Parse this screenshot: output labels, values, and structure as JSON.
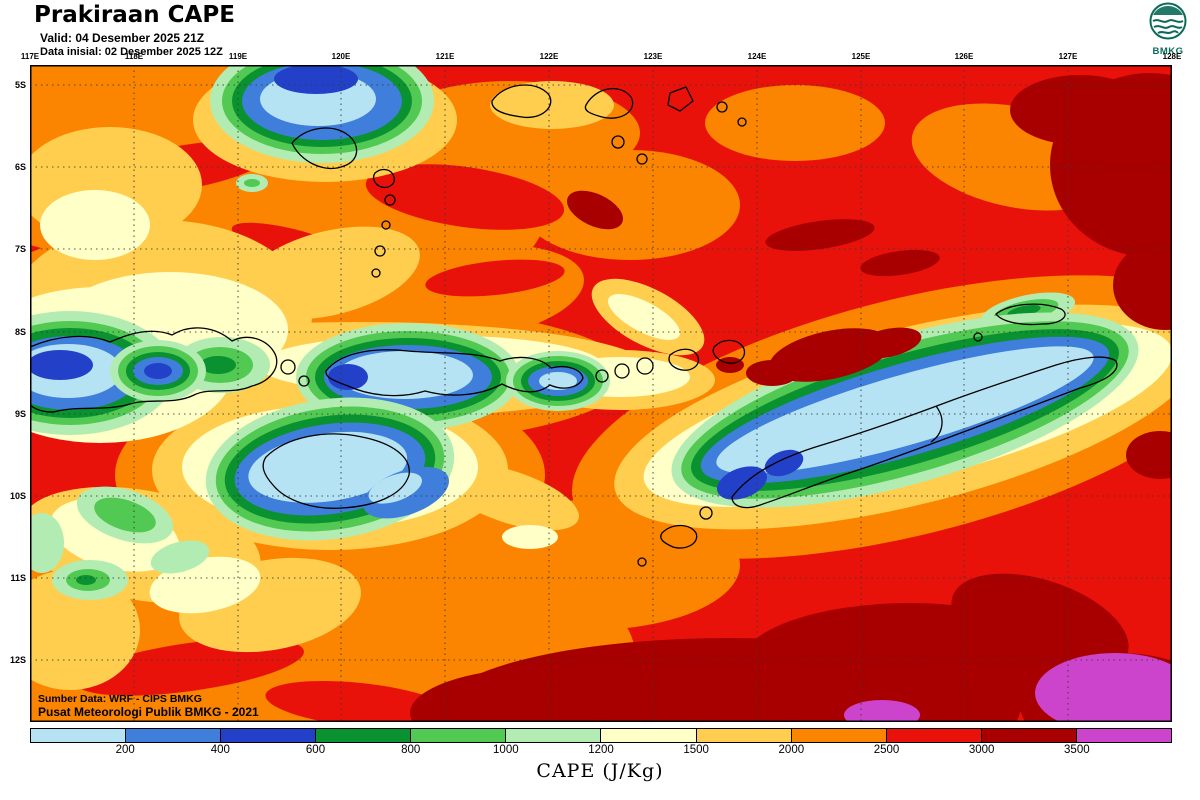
{
  "header": {
    "title": "Prakiraan CAPE",
    "valid_line": "Valid: 04 Desember 2025 21Z",
    "init_line": "Data inisial: 02 Desember 2025 12Z",
    "logo_label": "BMKG"
  },
  "map": {
    "lon_labels": [
      "117E",
      "118E",
      "119E",
      "120E",
      "121E",
      "122E",
      "123E",
      "124E",
      "125E",
      "126E",
      "127E",
      "128E"
    ],
    "lat_labels": [
      "5S",
      "6S",
      "7S",
      "8S",
      "9S",
      "10S",
      "11S",
      "12S"
    ],
    "source_line1": "Sumber Data: WRF - CIPS BMKG",
    "source_line2": "Pusat Meteorologi Publik BMKG -  2021"
  },
  "legend": {
    "caption": "CAPE (J/Kg)",
    "ticks": [
      "200",
      "400",
      "600",
      "800",
      "1000",
      "1200",
      "1500",
      "2000",
      "2500",
      "3000",
      "3500"
    ],
    "colors": [
      "#b5e3f4",
      "#3f7fdb",
      "#2340c8",
      "#0a9130",
      "#52c952",
      "#b2ecb2",
      "#ffffc8",
      "#ffce4f",
      "#fb8500",
      "#e8120b",
      "#a80000",
      "#cc44cc"
    ],
    "accent_red": "#e8120b",
    "accent_orange": "#fb8500"
  }
}
